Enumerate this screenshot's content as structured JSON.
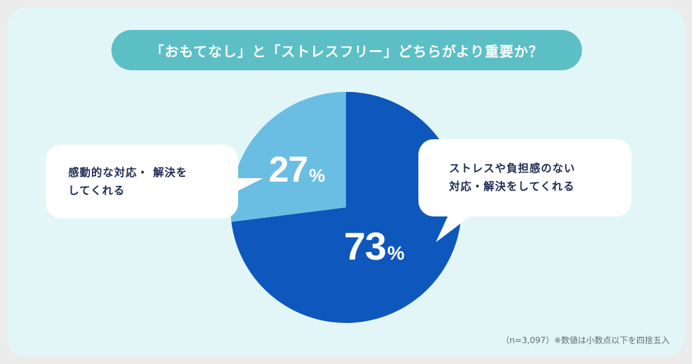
{
  "title": "「おもてなし」と「ストレスフリー」どちらがより重要か？",
  "chart_data": {
    "type": "pie",
    "slices": [
      {
        "label": "ストレスや負担感のない対応・解決をしてくれる",
        "value": 73,
        "display": "73",
        "unit": "%",
        "color": "#0e57bd"
      },
      {
        "label": "感動的な対応・ 解決をしてくれる",
        "value": 27,
        "display": "27",
        "unit": "%",
        "color": "#6bbee3"
      }
    ]
  },
  "callouts": {
    "left": {
      "line1": "感動的な対応・ 解決を",
      "line2": "してくれる"
    },
    "right": {
      "line1": "ストレスや負担感のない",
      "line2": "対応・解決をしてくれる"
    }
  },
  "footnote": "（n=3,097）※数値は小数点以下を四捨五入",
  "colors": {
    "background": "#e3f6f7",
    "title_pill": "#5dbfc6",
    "callout_text": "#1d2a55"
  }
}
